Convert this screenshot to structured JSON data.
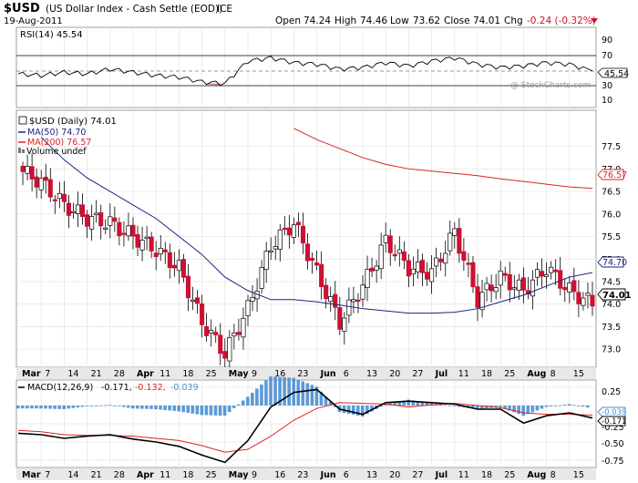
{
  "header": {
    "symbol": "$USD",
    "description": "(US Dollar Index - Cash Settle (EOD))",
    "exchange": "ICE",
    "date": "19-Aug-2011",
    "open_label": "Open",
    "open": "74.24",
    "high_label": "High",
    "high": "74.46",
    "low_label": "Low",
    "low": "73.62",
    "close_label": "Close",
    "close": "74.01",
    "chg_label": "Chg",
    "chg": "-0.24 (-0.32%)",
    "watermark": "@ StockCharts.com"
  },
  "rsi_panel": {
    "legend": "RSI(14) 45.54",
    "tick_labels": [
      "90",
      "70",
      "50",
      "30",
      "10"
    ],
    "current_badge": "45.54"
  },
  "price_panel": {
    "legend_main": "$USD (Daily) 74.01",
    "legend_ma50": "MA(50) 74.70",
    "legend_ma200": "MA(200) 76.57",
    "legend_volume": "Volume undef",
    "tick_labels": [
      "77.5",
      "77.0",
      "76.5",
      "76.0",
      "75.5",
      "75.0",
      "74.5",
      "74.0",
      "73.5",
      "73.0"
    ],
    "badge_ma200": "76.57",
    "badge_ma50": "74.70",
    "badge_close": "74.01"
  },
  "x_axis": {
    "labels": [
      {
        "text": "Mar",
        "bold": true
      },
      {
        "text": "7",
        "bold": false
      },
      {
        "text": "14",
        "bold": false
      },
      {
        "text": "21",
        "bold": false
      },
      {
        "text": "28",
        "bold": false
      },
      {
        "text": "Apr",
        "bold": true
      },
      {
        "text": "11",
        "bold": false
      },
      {
        "text": "18",
        "bold": false
      },
      {
        "text": "25",
        "bold": false
      },
      {
        "text": "May",
        "bold": true
      },
      {
        "text": "9",
        "bold": false
      },
      {
        "text": "16",
        "bold": false
      },
      {
        "text": "23",
        "bold": false
      },
      {
        "text": "Jun",
        "bold": true
      },
      {
        "text": "6",
        "bold": false
      },
      {
        "text": "13",
        "bold": false
      },
      {
        "text": "20",
        "bold": false
      },
      {
        "text": "27",
        "bold": false
      },
      {
        "text": "Jul",
        "bold": true
      },
      {
        "text": "11",
        "bold": false
      },
      {
        "text": "18",
        "bold": false
      },
      {
        "text": "25",
        "bold": false
      },
      {
        "text": "Aug",
        "bold": true
      },
      {
        "text": "8",
        "bold": false
      },
      {
        "text": "15",
        "bold": false
      }
    ]
  },
  "macd_panel": {
    "legend_prefix": "MACD(12,26,9)",
    "legend_macd": "-0.171,",
    "legend_signal": "-0.132,",
    "legend_hist": "-0.039",
    "tick_labels": [
      "0.25",
      "0.00",
      "-0.25",
      "-0.50",
      "-0.75"
    ],
    "badge_hist": "-0.039",
    "badge_macd": "-0.171"
  },
  "colors": {
    "background": "#ffffff",
    "panel_bg": "#ffffff",
    "grid": "#e4e4e4",
    "axis_strip": "#e8e8e8",
    "up_candle": "#ffffff",
    "down_candle": "#cc1133",
    "wick": "#000000",
    "ma50": "#1a237e",
    "ma200": "#dd2222",
    "rsi_line": "#000000",
    "macd_line": "#000000",
    "signal_line": "#dd2222",
    "histogram": "#4a8fd0"
  },
  "chart_data": [
    {
      "type": "line",
      "title": "RSI(14)",
      "ylim": [
        0,
        100
      ],
      "reference_levels": [
        70,
        50,
        30
      ],
      "x": [
        "Mar 1",
        "Mar 8",
        "Mar 15",
        "Mar 22",
        "Mar 29",
        "Apr 5",
        "Apr 12",
        "Apr 19",
        "Apr 26",
        "May 3",
        "May 10",
        "May 17",
        "May 24",
        "May 31",
        "Jun 7",
        "Jun 14",
        "Jun 21",
        "Jun 28",
        "Jul 5",
        "Jul 12",
        "Jul 19",
        "Jul 26",
        "Aug 2",
        "Aug 9",
        "Aug 16",
        "Aug 19"
      ],
      "series": [
        {
          "name": "RSI(14)",
          "values": [
            42,
            40,
            44,
            42,
            48,
            44,
            40,
            38,
            32,
            30,
            58,
            62,
            56,
            54,
            48,
            50,
            56,
            52,
            58,
            62,
            54,
            50,
            52,
            56,
            54,
            45.54
          ]
        }
      ]
    },
    {
      "type": "candlestick",
      "title": "$USD (Daily)",
      "ylim": [
        72.6,
        78.3
      ],
      "grid": true,
      "legend_placement": "top-left",
      "x": [
        "Mar 1",
        "Mar 8",
        "Mar 15",
        "Mar 22",
        "Mar 29",
        "Apr 5",
        "Apr 12",
        "Apr 19",
        "Apr 26",
        "May 3",
        "May 10",
        "May 17",
        "May 24",
        "May 31",
        "Jun 7",
        "Jun 14",
        "Jun 21",
        "Jun 28",
        "Jul 5",
        "Jul 12",
        "Jul 19",
        "Jul 26",
        "Aug 2",
        "Aug 9",
        "Aug 16",
        "Aug 19"
      ],
      "series": [
        {
          "name": "Close",
          "values": [
            77.0,
            76.7,
            76.2,
            75.9,
            75.8,
            75.5,
            75.2,
            74.8,
            73.6,
            72.9,
            73.9,
            75.3,
            75.8,
            74.7,
            73.6,
            74.4,
            75.4,
            74.8,
            74.7,
            75.6,
            74.1,
            74.6,
            74.3,
            74.8,
            74.3,
            74.01
          ]
        },
        {
          "name": "MA(50)",
          "values": [
            null,
            77.7,
            77.2,
            76.8,
            76.5,
            76.2,
            75.9,
            75.5,
            75.1,
            74.6,
            74.3,
            74.1,
            74.1,
            74.05,
            73.98,
            73.9,
            73.85,
            73.8,
            73.8,
            73.82,
            73.9,
            74.05,
            74.2,
            74.4,
            74.6,
            74.7
          ]
        },
        {
          "name": "MA(200)",
          "values": [
            null,
            null,
            null,
            null,
            null,
            null,
            null,
            null,
            null,
            null,
            null,
            null,
            77.9,
            77.65,
            77.45,
            77.25,
            77.1,
            77.0,
            76.95,
            76.9,
            76.85,
            76.78,
            76.72,
            76.66,
            76.6,
            76.57
          ]
        }
      ]
    },
    {
      "type": "line",
      "title": "MACD(12,26,9)",
      "ylim": [
        -0.85,
        0.35
      ],
      "x": [
        "Mar 1",
        "Mar 8",
        "Mar 15",
        "Mar 22",
        "Mar 29",
        "Apr 5",
        "Apr 12",
        "Apr 19",
        "Apr 26",
        "May 3",
        "May 10",
        "May 17",
        "May 24",
        "May 31",
        "Jun 7",
        "Jun 14",
        "Jun 21",
        "Jun 28",
        "Jul 5",
        "Jul 12",
        "Jul 19",
        "Jul 26",
        "Aug 2",
        "Aug 9",
        "Aug 16",
        "Aug 19"
      ],
      "series": [
        {
          "name": "MACD",
          "values": [
            -0.38,
            -0.4,
            -0.45,
            -0.42,
            -0.4,
            -0.46,
            -0.5,
            -0.56,
            -0.68,
            -0.78,
            -0.48,
            -0.02,
            0.18,
            0.22,
            -0.05,
            -0.12,
            0.04,
            0.06,
            0.04,
            0.02,
            -0.05,
            -0.05,
            -0.24,
            -0.14,
            -0.1,
            -0.171
          ]
        },
        {
          "name": "Signal",
          "values": [
            -0.34,
            -0.36,
            -0.4,
            -0.41,
            -0.41,
            -0.42,
            -0.45,
            -0.48,
            -0.55,
            -0.64,
            -0.6,
            -0.42,
            -0.2,
            -0.04,
            0.04,
            0.03,
            0.02,
            -0.02,
            0.01,
            0.03,
            0.0,
            -0.03,
            -0.1,
            -0.12,
            -0.12,
            -0.132
          ]
        },
        {
          "name": "Histogram",
          "values": [
            -0.04,
            -0.04,
            -0.05,
            -0.01,
            0.01,
            -0.04,
            -0.05,
            -0.08,
            -0.13,
            -0.14,
            0.12,
            0.4,
            0.38,
            0.26,
            -0.09,
            -0.15,
            0.02,
            0.08,
            0.03,
            -0.01,
            -0.05,
            -0.02,
            -0.14,
            -0.02,
            0.02,
            -0.039
          ]
        }
      ]
    }
  ]
}
